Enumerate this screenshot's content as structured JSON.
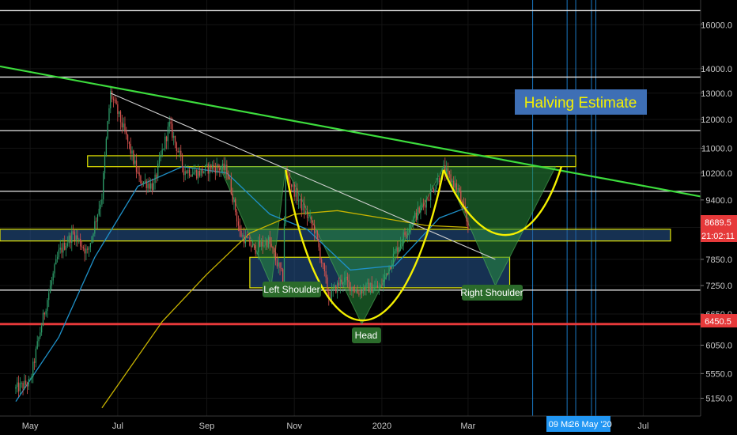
{
  "chart_data": {
    "type": "candlestick",
    "instrument": "BTC",
    "price_axis": {
      "scale": "log",
      "range": [
        4900,
        17500
      ],
      "ticks": [
        "16000.0",
        "14000.0",
        "13000.0",
        "12000.0",
        "11000.0",
        "10200.0",
        "9400.0",
        "8650.0",
        "7850.0",
        "7250.0",
        "6650.0",
        "6050.0",
        "5550.0",
        "5150.0"
      ]
    },
    "time_axis": {
      "ticks": [
        "May",
        "Jul",
        "Sep",
        "Nov",
        "2020",
        "Mar",
        "Jul"
      ]
    },
    "series_points": [
      [
        "2019-04-21",
        5300
      ],
      [
        "2019-05-01",
        5400
      ],
      [
        "2019-05-11",
        6700
      ],
      [
        "2019-05-21",
        8000
      ],
      [
        "2019-05-31",
        8500
      ],
      [
        "2019-06-10",
        8000
      ],
      [
        "2019-06-20",
        9500
      ],
      [
        "2019-06-26",
        13000
      ],
      [
        "2019-07-06",
        11500
      ],
      [
        "2019-07-16",
        10000
      ],
      [
        "2019-07-26",
        9800
      ],
      [
        "2019-08-06",
        11800
      ],
      [
        "2019-08-16",
        10300
      ],
      [
        "2019-08-26",
        10200
      ],
      [
        "2019-09-05",
        10400
      ],
      [
        "2019-09-15",
        10300
      ],
      [
        "2019-09-24",
        8500
      ],
      [
        "2019-10-04",
        8100
      ],
      [
        "2019-10-14",
        8300
      ],
      [
        "2019-10-24",
        7400
      ],
      [
        "2019-10-26",
        10200
      ],
      [
        "2019-11-05",
        9300
      ],
      [
        "2019-11-15",
        8600
      ],
      [
        "2019-11-25",
        7000
      ],
      [
        "2019-12-05",
        7400
      ],
      [
        "2019-12-15",
        7100
      ],
      [
        "2019-12-20",
        7200
      ],
      [
        "2019-12-31",
        7200
      ],
      [
        "2020-01-10",
        8000
      ],
      [
        "2020-01-20",
        8700
      ],
      [
        "2020-02-01",
        9400
      ],
      [
        "2020-02-13",
        10300
      ],
      [
        "2020-02-23",
        9700
      ],
      [
        "2020-03-01",
        8650
      ]
    ],
    "moving_averages": [
      {
        "color": "#1e90c8",
        "points": [
          [
            "2019-04-21",
            5100
          ],
          [
            "2019-05-21",
            6200
          ],
          [
            "2019-06-15",
            7900
          ],
          [
            "2019-07-15",
            9800
          ],
          [
            "2019-08-15",
            10400
          ],
          [
            "2019-09-15",
            10200
          ],
          [
            "2019-10-15",
            9000
          ],
          [
            "2019-11-10",
            8600
          ],
          [
            "2019-12-10",
            7600
          ],
          [
            "2020-01-10",
            7700
          ],
          [
            "2020-02-10",
            8900
          ],
          [
            "2020-03-01",
            9200
          ]
        ]
      },
      {
        "color": "#c8b400",
        "points": [
          [
            "2019-06-20",
            5000
          ],
          [
            "2019-08-01",
            6500
          ],
          [
            "2019-09-01",
            7500
          ],
          [
            "2019-10-01",
            8500
          ],
          [
            "2019-11-01",
            9000
          ],
          [
            "2019-12-01",
            9100
          ],
          [
            "2020-01-01",
            8900
          ],
          [
            "2020-02-01",
            8700
          ],
          [
            "2020-03-01",
            8650
          ]
        ]
      }
    ],
    "lines": {
      "horizontal_white": [
        16700,
        13650,
        11600,
        9650,
        7150
      ],
      "support_red": 6450.5,
      "green_trendline": [
        [
          "2019-04-10",
          14100
        ],
        [
          "2020-08-10",
          9500
        ]
      ],
      "white_trendline": [
        [
          "2019-06-26",
          13000
        ],
        [
          "2020-03-20",
          7850
        ]
      ]
    },
    "zones": [
      {
        "kind": "green-yellow",
        "from": "2019-06-10",
        "to": "2020-05-15",
        "low": 10400,
        "high": 10750
      },
      {
        "kind": "blue",
        "from": "2019-04-10",
        "to": "2020-07-20",
        "low": 8300,
        "high": 8600
      },
      {
        "kind": "blue",
        "from": "2019-10-01",
        "to": "2020-03-30",
        "low": 7200,
        "high": 7900
      }
    ],
    "pattern": {
      "left_shoulder_label": "Left Shoulder",
      "head_label": "Head",
      "right_shoulder_label": "Right Shoulder"
    },
    "annotations": {
      "halving_estimate": "Halving Estimate"
    },
    "current_price": {
      "value": "8689.5",
      "countdown": "21:02:11",
      "color": "#e6393a"
    },
    "support_tag": {
      "value": "6450.5",
      "color": "#e6393a"
    },
    "halving_dates": {
      "dates": [
        "2020-05-09",
        "2020-05-26"
      ],
      "labels": [
        "09 Ma",
        "26 May '20"
      ],
      "color": "#2196f3"
    }
  }
}
